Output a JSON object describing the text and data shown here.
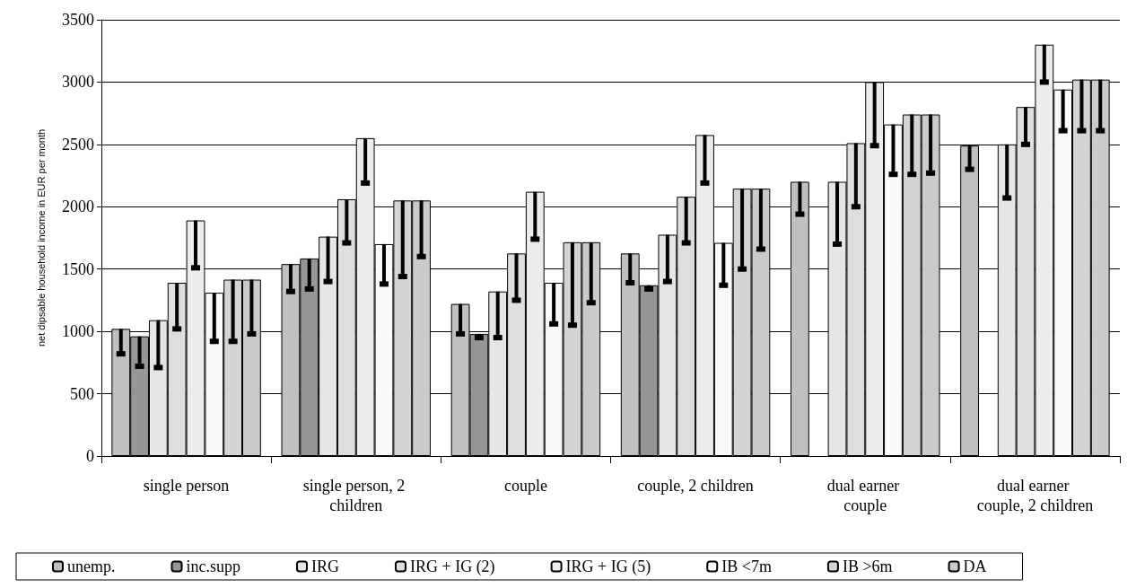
{
  "chart_data": {
    "type": "bar",
    "ylabel": "net dipsable household income in EUR per month",
    "categories": [
      "single person",
      "single person, 2 children",
      "couple",
      "couple, 2 children",
      "dual earner couple",
      "dual earner couple, 2 children"
    ],
    "series": [
      {
        "name": "unemp.",
        "color": "#c0c0c0",
        "values": [
          1020,
          1540,
          1220,
          1625,
          2200,
          2490
        ],
        "errors": [
          [
            820,
            1020
          ],
          [
            1320,
            1540
          ],
          [
            980,
            1220
          ],
          [
            1390,
            1625
          ],
          [
            1940,
            2200
          ],
          [
            2300,
            2490
          ]
        ]
      },
      {
        "name": "inc.supp",
        "color": "#969696",
        "values": [
          960,
          1585,
          980,
          1370,
          0,
          0
        ],
        "errors": [
          [
            720,
            960
          ],
          [
            1340,
            1585
          ],
          [
            950,
            980
          ],
          [
            1340,
            1370
          ],
          null,
          null
        ]
      },
      {
        "name": "IRG",
        "color": "#e6e6e6",
        "values": [
          1090,
          1760,
          1320,
          1775,
          2200,
          2500
        ],
        "errors": [
          [
            710,
            1090
          ],
          [
            1400,
            1760
          ],
          [
            950,
            1320
          ],
          [
            1400,
            1775
          ],
          [
            1700,
            2200
          ],
          [
            2070,
            2500
          ]
        ]
      },
      {
        "name": "IRG + IG (2)",
        "color": "#dedede",
        "values": [
          1390,
          2060,
          1625,
          2080,
          2510,
          2800
        ],
        "errors": [
          [
            1020,
            1390
          ],
          [
            1710,
            2060
          ],
          [
            1250,
            1625
          ],
          [
            1710,
            2080
          ],
          [
            2000,
            2510
          ],
          [
            2500,
            2800
          ]
        ]
      },
      {
        "name": "IRG + IG (5)",
        "color": "#ececec",
        "values": [
          1890,
          2550,
          2120,
          2575,
          3000,
          3300
        ],
        "errors": [
          [
            1510,
            1890
          ],
          [
            2190,
            2550
          ],
          [
            1740,
            2120
          ],
          [
            2190,
            2575
          ],
          [
            2490,
            3000
          ],
          [
            3000,
            3300
          ]
        ]
      },
      {
        "name": "IB <7m",
        "color": "#fafafa",
        "values": [
          1310,
          1700,
          1390,
          1710,
          2660,
          2940
        ],
        "errors": [
          [
            920,
            1310
          ],
          [
            1380,
            1700
          ],
          [
            1060,
            1390
          ],
          [
            1370,
            1710
          ],
          [
            2260,
            2660
          ],
          [
            2610,
            2940
          ]
        ]
      },
      {
        "name": "IB >6m",
        "color": "#d4d4d4",
        "values": [
          1415,
          2050,
          1715,
          2145,
          2740,
          3020
        ],
        "errors": [
          [
            920,
            1415
          ],
          [
            1440,
            2050
          ],
          [
            1050,
            1715
          ],
          [
            1500,
            2145
          ],
          [
            2260,
            2740
          ],
          [
            2610,
            3020
          ]
        ]
      },
      {
        "name": "DA",
        "color": "#cacaca",
        "values": [
          1415,
          2050,
          1715,
          2145,
          2740,
          3020
        ],
        "errors": [
          [
            980,
            1415
          ],
          [
            1600,
            2050
          ],
          [
            1230,
            1715
          ],
          [
            1660,
            2145
          ],
          [
            2270,
            2740
          ],
          [
            2610,
            3020
          ]
        ]
      }
    ],
    "ylim": [
      0,
      3500
    ],
    "yticks": [
      0,
      500,
      1000,
      1500,
      2000,
      2500,
      3000,
      3500
    ],
    "grid": "y",
    "legend": "bottom"
  }
}
